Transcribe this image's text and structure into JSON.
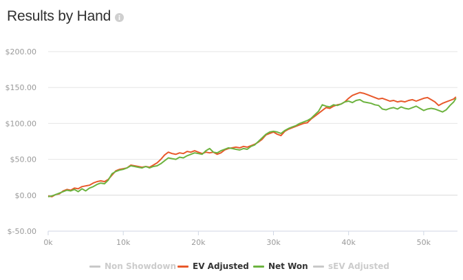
{
  "page": {
    "title": "Results by Hand",
    "info_icon": "info-icon"
  },
  "colors": {
    "ev_adjusted": "#e8582a",
    "net_won": "#6cb33f",
    "hidden": "#c8c8c8",
    "grid": "#e6e6e6",
    "tick": "#999999"
  },
  "legend": [
    {
      "name": "Non Showdown",
      "color": "#c8c8c8",
      "active": false
    },
    {
      "name": "EV Adjusted",
      "color": "#e8582a",
      "active": true
    },
    {
      "name": "Net Won",
      "color": "#6cb33f",
      "active": true
    },
    {
      "name": "sEV Adjusted",
      "color": "#c8c8c8",
      "active": false
    }
  ],
  "chart_data": {
    "type": "line",
    "title": "Results by Hand",
    "xlabel": "",
    "ylabel": "",
    "xlim": [
      0,
      54500
    ],
    "ylim": [
      -50,
      200
    ],
    "x_ticks": [
      0,
      10000,
      20000,
      30000,
      40000,
      50000
    ],
    "x_tick_labels": [
      "0k",
      "10k",
      "20k",
      "30k",
      "40k",
      "50k"
    ],
    "y_ticks": [
      200,
      150,
      100,
      50,
      0,
      -50
    ],
    "y_tick_labels": [
      "$200.00",
      "$150.00",
      "$100.00",
      "$50.00",
      "$0.00",
      "$-50.00"
    ],
    "grid": true,
    "legend_position": "bottom",
    "series": [
      {
        "name": "EV Adjusted",
        "color": "#e8582a",
        "x": [
          0,
          500,
          1000,
          1500,
          2000,
          2500,
          3000,
          3500,
          4000,
          4500,
          5000,
          5500,
          6000,
          6500,
          7000,
          7500,
          8000,
          8500,
          9000,
          9500,
          10000,
          10500,
          11000,
          11500,
          12000,
          12500,
          13000,
          13500,
          14000,
          14500,
          15000,
          15500,
          16000,
          16500,
          17000,
          17500,
          18000,
          18500,
          19000,
          19500,
          20000,
          20500,
          21000,
          21500,
          22000,
          22500,
          23000,
          23500,
          24000,
          24500,
          25000,
          25500,
          26000,
          26500,
          27000,
          27500,
          28000,
          28500,
          29000,
          29500,
          30000,
          30500,
          31000,
          31500,
          32000,
          32500,
          33000,
          33500,
          34000,
          34500,
          35000,
          35500,
          36000,
          36500,
          37000,
          37500,
          38000,
          38500,
          39000,
          39500,
          40000,
          40500,
          41000,
          41500,
          42000,
          42500,
          43000,
          43500,
          44000,
          44500,
          45000,
          45500,
          46000,
          46500,
          47000,
          47500,
          48000,
          48500,
          49000,
          49500,
          50000,
          50500,
          51000,
          51500,
          52000,
          52500,
          53000,
          53500,
          54000,
          54300
        ],
        "y": [
          -1,
          -2,
          1,
          2,
          6,
          8,
          7,
          10,
          9,
          12,
          13,
          14,
          17,
          19,
          20,
          19,
          22,
          28,
          34,
          36,
          37,
          38,
          42,
          41,
          40,
          39,
          40,
          39,
          42,
          45,
          50,
          56,
          60,
          58,
          57,
          59,
          58,
          61,
          60,
          62,
          60,
          58,
          60,
          59,
          60,
          57,
          59,
          63,
          65,
          66,
          67,
          66,
          68,
          67,
          69,
          71,
          74,
          78,
          84,
          86,
          88,
          85,
          83,
          89,
          92,
          94,
          96,
          98,
          100,
          101,
          106,
          110,
          114,
          118,
          122,
          121,
          124,
          126,
          127,
          130,
          135,
          139,
          141,
          143,
          142,
          140,
          138,
          136,
          134,
          135,
          133,
          131,
          132,
          130,
          131,
          130,
          132,
          133,
          131,
          133,
          135,
          136,
          133,
          130,
          125,
          128,
          130,
          132,
          134,
          137
        ]
      },
      {
        "name": "Net Won",
        "color": "#6cb33f",
        "x": [
          0,
          500,
          1000,
          1500,
          2000,
          2500,
          3000,
          3500,
          4000,
          4500,
          5000,
          5500,
          6000,
          6500,
          7000,
          7500,
          8000,
          8500,
          9000,
          9500,
          10000,
          10500,
          11000,
          11500,
          12000,
          12500,
          13000,
          13500,
          14000,
          14500,
          15000,
          15500,
          16000,
          16500,
          17000,
          17500,
          18000,
          18500,
          19000,
          19500,
          20000,
          20500,
          21000,
          21500,
          22000,
          22500,
          23000,
          23500,
          24000,
          24500,
          25000,
          25500,
          26000,
          26500,
          27000,
          27500,
          28000,
          28500,
          29000,
          29500,
          30000,
          30500,
          31000,
          31500,
          32000,
          32500,
          33000,
          33500,
          34000,
          34500,
          35000,
          35500,
          36000,
          36500,
          37000,
          37500,
          38000,
          38500,
          39000,
          39500,
          40000,
          40500,
          41000,
          41500,
          42000,
          42500,
          43000,
          43500,
          44000,
          44500,
          45000,
          45500,
          46000,
          46500,
          47000,
          47500,
          48000,
          48500,
          49000,
          49500,
          50000,
          50500,
          51000,
          51500,
          52000,
          52500,
          53000,
          53500,
          54000,
          54300
        ],
        "y": [
          -2,
          -1,
          1,
          3,
          5,
          7,
          6,
          8,
          5,
          9,
          6,
          10,
          12,
          15,
          17,
          16,
          21,
          30,
          33,
          35,
          36,
          38,
          41,
          40,
          39,
          38,
          40,
          38,
          40,
          41,
          44,
          48,
          52,
          51,
          50,
          53,
          52,
          55,
          57,
          59,
          58,
          57,
          62,
          65,
          60,
          59,
          62,
          64,
          66,
          65,
          64,
          63,
          65,
          64,
          68,
          70,
          75,
          80,
          85,
          88,
          89,
          88,
          86,
          90,
          93,
          95,
          97,
          100,
          102,
          104,
          107,
          112,
          117,
          126,
          124,
          123,
          126,
          125,
          127,
          130,
          131,
          129,
          132,
          133,
          130,
          129,
          128,
          126,
          125,
          120,
          119,
          121,
          122,
          120,
          123,
          121,
          120,
          122,
          124,
          121,
          118,
          120,
          121,
          120,
          118,
          116,
          119,
          125,
          130,
          135
        ]
      }
    ]
  }
}
